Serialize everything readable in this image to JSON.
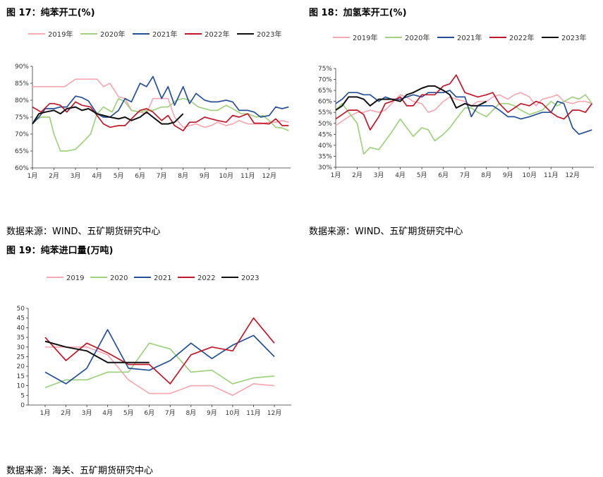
{
  "colors": {
    "2019": "#f4a9b5",
    "2020": "#9fd17f",
    "2021": "#254f96",
    "2022": "#c0172a",
    "2023": "#111111"
  },
  "panels": [
    {
      "title": "图 17：纯苯开工(%)",
      "source": "数据来源：WIND、五矿期货研究中心"
    },
    {
      "title": "图 18：加氢苯开工(%)",
      "source": "数据来源：WIND、五矿期货研究中心"
    },
    {
      "title": "图 19：纯苯进口量(万吨)",
      "source": "数据来源：海关、五矿期货研究中心"
    }
  ],
  "chart_data": [
    {
      "type": "line",
      "title": "纯苯开工(%)",
      "x_ticks": [
        "1月",
        "2月",
        "3月",
        "4月",
        "5月",
        "6月",
        "7月",
        "8月",
        "9月",
        "10月",
        "11月",
        "12月"
      ],
      "y_ticks": [
        "60%",
        "65%",
        "70%",
        "75%",
        "80%",
        "85%",
        "90%"
      ],
      "ylim": [
        60,
        90
      ],
      "xlim": [
        1,
        12.99
      ],
      "grid": false,
      "legend_position": "top",
      "series": [
        {
          "name": "2019年",
          "key": "2019",
          "x": [
            1,
            1.5,
            2,
            2.5,
            3,
            3.5,
            4,
            4.3,
            4.6,
            5,
            5.3,
            5.6,
            6,
            6.3,
            6.6,
            7,
            7.3,
            7.6,
            8,
            8.3,
            8.6,
            9,
            9.3,
            9.6,
            10,
            10.3,
            10.6,
            11,
            11.3,
            11.6,
            12,
            12.3,
            12.6,
            12.9
          ],
          "y": [
            84,
            84,
            84,
            84,
            86.2,
            86.2,
            86.2,
            84,
            85,
            81,
            80.5,
            77,
            76.5,
            76,
            80.5,
            80.5,
            80.5,
            75,
            72,
            72.5,
            73,
            72,
            72.5,
            73.5,
            72.5,
            73,
            74,
            73,
            73,
            73,
            73.5,
            73.5,
            74,
            73.5
          ]
        },
        {
          "name": "2020年",
          "key": "2020",
          "x": [
            1,
            1.4,
            1.8,
            2,
            2.3,
            2.6,
            3,
            3.4,
            3.7,
            4,
            4.3,
            4.7,
            5,
            5.3,
            5.6,
            6,
            6.3,
            6.6,
            7,
            7.3,
            7.7,
            8,
            8.3,
            8.7,
            9,
            9.3,
            9.6,
            10,
            10.3,
            10.7,
            11,
            11.4,
            11.7,
            12,
            12.3,
            12.6,
            12.9
          ],
          "y": [
            73.5,
            75,
            75,
            70,
            65,
            65,
            65.5,
            68,
            70,
            76,
            78,
            76.5,
            80.5,
            79.5,
            77,
            76.5,
            77,
            77,
            78,
            78,
            80,
            80.5,
            80,
            78,
            77.5,
            77,
            77,
            78.5,
            77.5,
            76,
            76,
            75,
            75.5,
            74,
            72,
            71.8,
            71
          ]
        },
        {
          "name": "2021年",
          "key": "2021",
          "x": [
            1,
            1.3,
            1.6,
            2,
            2.3,
            2.6,
            3,
            3.3,
            3.6,
            4,
            4.3,
            4.6,
            5,
            5.3,
            5.6,
            6,
            6.3,
            6.6,
            7,
            7.3,
            7.6,
            8,
            8.3,
            8.6,
            9,
            9.3,
            9.6,
            10,
            10.3,
            10.6,
            11,
            11.3,
            11.6,
            12,
            12.3,
            12.6,
            12.9
          ],
          "y": [
            73,
            75,
            77.5,
            77.5,
            78,
            78,
            81.2,
            80.8,
            79.8,
            76,
            75,
            75,
            77,
            80.5,
            79.5,
            85,
            84,
            87,
            80.5,
            84,
            78.5,
            84,
            79,
            82,
            80,
            79.5,
            79.5,
            80,
            79.5,
            77,
            77,
            76.5,
            75,
            75.5,
            78,
            77.5,
            78
          ]
        },
        {
          "name": "2022年",
          "key": "2022",
          "x": [
            1,
            1.4,
            1.8,
            2,
            2.3,
            2.6,
            3,
            3.3,
            3.7,
            4,
            4.3,
            4.6,
            5,
            5.3,
            5.6,
            6,
            6.3,
            6.6,
            7,
            7.3,
            7.6,
            8,
            8.3,
            8.6,
            9,
            9.3,
            9.6,
            10,
            10.3,
            10.6,
            11,
            11.3,
            11.6,
            12,
            12.3,
            12.6,
            12.9
          ],
          "y": [
            78,
            76.5,
            79,
            79,
            78.5,
            76.5,
            79.5,
            78.5,
            78,
            75.5,
            73,
            72,
            72.5,
            72.5,
            74.5,
            77,
            77.5,
            76.5,
            74,
            75.5,
            72.5,
            71,
            73.5,
            73.5,
            75,
            74.5,
            74,
            73.5,
            75.5,
            75,
            76,
            73.2,
            73.2,
            73,
            74.5,
            72.5,
            72.5
          ]
        },
        {
          "name": "2023年",
          "key": "2023",
          "x": [
            1,
            1.3,
            1.6,
            2,
            2.3,
            2.6,
            3,
            3.3,
            3.6,
            4,
            4.3,
            4.6,
            5,
            5.3,
            5.6,
            6,
            6.3,
            6.6,
            7,
            7.3,
            7.6,
            8
          ],
          "y": [
            73,
            76,
            76.5,
            77,
            76,
            77.5,
            78,
            77,
            77.5,
            76,
            75.5,
            75,
            74.5,
            75,
            74,
            75,
            76.5,
            75,
            73,
            73,
            73.5,
            76
          ]
        }
      ]
    },
    {
      "type": "line",
      "title": "加氢苯开工(%)",
      "x_ticks": [
        "1月",
        "2月",
        "3月",
        "4月",
        "5月",
        "6月",
        "7月",
        "8月",
        "9月",
        "10月",
        "11月",
        "12月"
      ],
      "y_ticks": [
        "30%",
        "35%",
        "40%",
        "45%",
        "50%",
        "55%",
        "60%",
        "65%",
        "70%",
        "75%"
      ],
      "ylim": [
        30,
        75
      ],
      "xlim": [
        1,
        12.99
      ],
      "grid": false,
      "legend_position": "top",
      "series": [
        {
          "name": "2019年",
          "key": "2019",
          "x": [
            1,
            1.3,
            1.6,
            2,
            2.3,
            2.6,
            3,
            3.3,
            3.6,
            4,
            4.3,
            4.6,
            5,
            5.3,
            5.6,
            6,
            6.3,
            6.6,
            7,
            7.3,
            7.6,
            8,
            8.3,
            8.6,
            9,
            9.3,
            9.6,
            10,
            10.3,
            10.6,
            11,
            11.3,
            11.6,
            12,
            12.3,
            12.6,
            12.9
          ],
          "y": [
            49,
            51,
            53,
            55,
            55,
            56,
            55,
            56,
            59,
            63,
            62,
            60,
            59,
            55,
            56,
            60,
            62,
            61,
            60,
            58,
            60,
            60,
            62,
            63,
            61,
            63,
            64,
            62,
            58,
            61,
            62,
            63,
            60,
            59,
            60,
            60,
            59
          ]
        },
        {
          "name": "2020年",
          "key": "2020",
          "x": [
            1,
            1.3,
            1.6,
            2,
            2.3,
            2.6,
            3,
            3.3,
            3.6,
            4,
            4.3,
            4.6,
            5,
            5.3,
            5.6,
            6,
            6.3,
            6.6,
            7,
            7.3,
            7.6,
            8,
            8.3,
            8.6,
            9,
            9.3,
            9.6,
            10,
            10.3,
            10.6,
            11,
            11.3,
            11.6,
            12,
            12.3,
            12.6,
            12.9
          ],
          "y": [
            56,
            59,
            55,
            50,
            36,
            39,
            38,
            42,
            46,
            52,
            48,
            44,
            48,
            47,
            42,
            45,
            48,
            52,
            57,
            57,
            55,
            53,
            56,
            59,
            59,
            58,
            56,
            54,
            55,
            56,
            60,
            58,
            60,
            62,
            61,
            63,
            59
          ]
        },
        {
          "name": "2021年",
          "key": "2021",
          "x": [
            1,
            1.3,
            1.6,
            2,
            2.3,
            2.6,
            3,
            3.3,
            3.6,
            4,
            4.3,
            4.6,
            5,
            5.3,
            5.6,
            6,
            6.3,
            6.6,
            7,
            7.3,
            7.6,
            8,
            8.3,
            8.6,
            9,
            9.3,
            9.6,
            10,
            10.3,
            10.6,
            11,
            11.3,
            11.6,
            12,
            12.3,
            12.6,
            12.9
          ],
          "y": [
            59,
            61,
            64,
            64,
            63,
            63,
            60,
            62,
            61,
            61,
            62,
            63,
            62,
            64,
            64,
            64,
            65,
            62,
            62,
            53,
            58,
            58,
            58,
            56,
            53,
            53,
            52,
            53,
            54,
            55,
            55,
            60,
            59,
            48,
            45,
            46,
            47
          ]
        },
        {
          "name": "2022年",
          "key": "2022",
          "x": [
            1,
            1.3,
            1.6,
            2,
            2.3,
            2.6,
            3,
            3.3,
            3.6,
            4,
            4.3,
            4.6,
            5,
            5.3,
            5.6,
            6,
            6.3,
            6.6,
            7,
            7.3,
            7.6,
            8,
            8.3,
            8.6,
            9,
            9.3,
            9.6,
            10,
            10.3,
            10.6,
            11,
            11.3,
            11.6,
            12,
            12.3,
            12.6,
            12.9
          ],
          "y": [
            52,
            54,
            56,
            56,
            54,
            47,
            53,
            59,
            60,
            62,
            58,
            58,
            63,
            63,
            63,
            67,
            68,
            72,
            64,
            63,
            62,
            63,
            64,
            59,
            55,
            57,
            59,
            58,
            60,
            59,
            55,
            53,
            52,
            56,
            56,
            55,
            59
          ]
        },
        {
          "name": "2023年",
          "key": "2023",
          "x": [
            1,
            1.3,
            1.6,
            2,
            2.3,
            2.6,
            3,
            3.3,
            3.6,
            4,
            4.3,
            4.6,
            5,
            5.3,
            5.6,
            6,
            6.3,
            6.6,
            7,
            7.3,
            7.6,
            8
          ],
          "y": [
            56,
            58,
            62,
            62,
            61,
            58,
            61,
            61,
            61,
            60,
            63,
            64,
            66,
            67,
            67,
            65,
            63,
            57,
            59,
            58,
            58,
            60
          ]
        }
      ]
    },
    {
      "type": "line",
      "title": "纯苯进口量(万吨)",
      "x_ticks": [
        "1月",
        "2月",
        "3月",
        "4月",
        "5月",
        "6月",
        "7月",
        "8月",
        "9月",
        "10月",
        "11月",
        "12月"
      ],
      "y_ticks": [
        "0",
        "5",
        "10",
        "15",
        "20",
        "25",
        "30",
        "35",
        "40",
        "45",
        "50"
      ],
      "ylim": [
        0,
        50
      ],
      "xlim": [
        1,
        12
      ],
      "grid": false,
      "legend_position": "top",
      "series": [
        {
          "name": "2019",
          "key": "2019",
          "x": [
            1,
            2,
            3,
            4,
            5,
            6,
            7,
            8,
            9,
            10,
            11,
            12
          ],
          "y": [
            30,
            30,
            30,
            26,
            13,
            6,
            6,
            10,
            10,
            5,
            11,
            10
          ]
        },
        {
          "name": "2020",
          "key": "2020",
          "x": [
            1,
            2,
            3,
            4,
            5,
            6,
            7,
            8,
            9,
            10,
            11,
            12
          ],
          "y": [
            9,
            13,
            13,
            17,
            17,
            32,
            29,
            17,
            18,
            11,
            14,
            15
          ]
        },
        {
          "name": "2021",
          "key": "2021",
          "x": [
            1,
            2,
            3,
            4,
            5,
            6,
            7,
            8,
            9,
            10,
            11,
            12
          ],
          "y": [
            17,
            11,
            19,
            39,
            19,
            18,
            23,
            32,
            24,
            31,
            36,
            25
          ]
        },
        {
          "name": "2022",
          "key": "2022",
          "x": [
            1,
            2,
            3,
            4,
            5,
            6,
            7,
            8,
            9,
            10,
            11,
            12
          ],
          "y": [
            35,
            23,
            32,
            27,
            21,
            21,
            11,
            26,
            30,
            28,
            45,
            32
          ]
        },
        {
          "name": "2023",
          "key": "2023",
          "x": [
            1,
            2,
            3,
            4,
            5,
            6
          ],
          "y": [
            33,
            30,
            28,
            22,
            22,
            22
          ]
        }
      ]
    }
  ]
}
